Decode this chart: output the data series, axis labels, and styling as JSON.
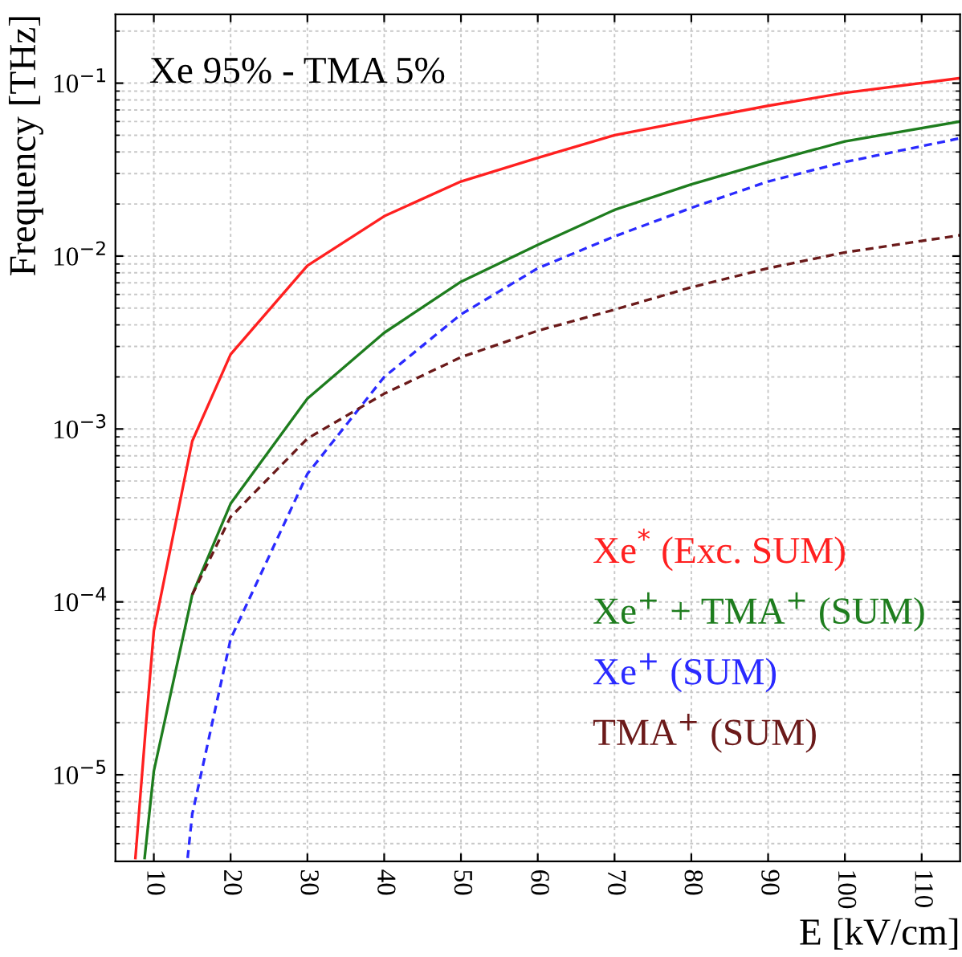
{
  "chart_data": {
    "type": "line",
    "title": "Xe 95% - TMA 5%",
    "xlabel": "E [kV/cm]",
    "ylabel": "Frequency [THz]",
    "log": "y",
    "grid": true,
    "legend": "right",
    "xlim": [
      5,
      115
    ],
    "xticks": [
      10,
      20,
      30,
      40,
      50,
      60,
      70,
      80,
      90,
      100,
      110
    ],
    "ylim": [
      3.16e-06,
      0.25
    ],
    "yticks": [
      {
        "value": 1e-05,
        "label": "10$^{−5}$"
      },
      {
        "value": 0.0001,
        "label": "10$^{−4}$"
      },
      {
        "value": 0.001,
        "label": "10$^{−3}$"
      },
      {
        "value": 0.01,
        "label": "10$^{−2}$"
      },
      {
        "value": 0.1,
        "label": "10$^{−1}$"
      }
    ],
    "series": [
      {
        "name": "Xe$^{*}$ (Exc. SUM)",
        "color": "#ff2020",
        "line_style": "solid",
        "x": [
          7.6,
          9,
          10,
          15,
          20,
          30,
          40,
          50,
          60,
          70,
          80,
          90,
          100,
          115
        ],
        "values": [
          3.3e-06,
          2e-05,
          6.8e-05,
          0.00085,
          0.0027,
          0.0088,
          0.017,
          0.027,
          0.037,
          0.05,
          0.061,
          0.074,
          0.088,
          0.107
        ]
      },
      {
        "name": "Xe$^{+}$ + TMA$^{+}$ (SUM)",
        "color": "#1e7d1e",
        "line_style": "solid",
        "x": [
          8.8,
          10,
          15,
          20,
          30,
          40,
          50,
          60,
          70,
          80,
          90,
          100,
          115
        ],
        "values": [
          3.3e-06,
          1.05e-05,
          0.00011,
          0.00037,
          0.0015,
          0.0036,
          0.0071,
          0.0116,
          0.0185,
          0.026,
          0.035,
          0.046,
          0.06
        ]
      },
      {
        "name": "Xe$^{+}$ (SUM)",
        "color": "#2a2aff",
        "line_style": "dashed",
        "x": [
          14.4,
          15,
          20,
          30,
          40,
          50,
          60,
          70,
          80,
          90,
          100,
          115
        ],
        "values": [
          3.3e-06,
          5.9e-06,
          6.1e-05,
          0.00055,
          0.002,
          0.0046,
          0.0085,
          0.013,
          0.019,
          0.027,
          0.035,
          0.048
        ]
      },
      {
        "name": "TMA$^{+}$ (SUM)",
        "color": "#6b1a1a",
        "line_style": "dashed",
        "x": [
          15,
          20,
          30,
          40,
          50,
          60,
          70,
          80,
          90,
          100,
          115
        ],
        "values": [
          0.00011,
          0.00031,
          0.00088,
          0.0016,
          0.0026,
          0.0037,
          0.0049,
          0.0066,
          0.0085,
          0.0105,
          0.0132
        ]
      }
    ]
  }
}
